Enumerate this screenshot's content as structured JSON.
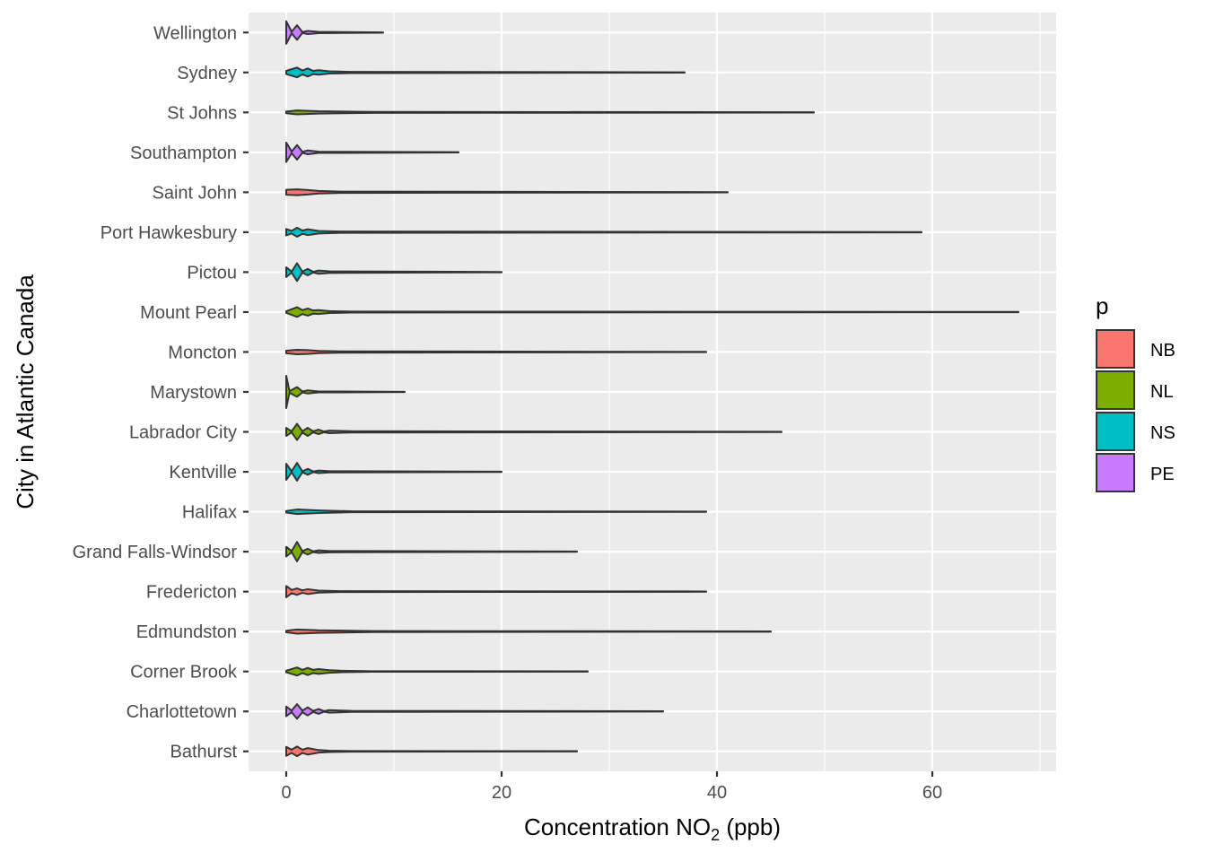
{
  "chart_data": {
    "type": "violin",
    "orientation": "horizontal",
    "title": "",
    "xlabel": {
      "main": "Concentration NO",
      "sub": "2",
      "unit": " (ppb)"
    },
    "ylabel": "City in Atlantic Canada",
    "xlim": [
      -3.5,
      71.5
    ],
    "x_ticks": [
      0,
      20,
      40,
      60
    ],
    "grid": true,
    "legend": {
      "title": "p",
      "position": "right",
      "entries": [
        {
          "name": "NB",
          "color": "#F8766D"
        },
        {
          "name": "NL",
          "color": "#7CAE00"
        },
        {
          "name": "NS",
          "color": "#00BFC4"
        },
        {
          "name": "PE",
          "color": "#C77CFF"
        }
      ]
    },
    "categories": [
      "Bathurst",
      "Charlottetown",
      "Corner Brook",
      "Edmundston",
      "Fredericton",
      "Grand Falls-Windsor",
      "Halifax",
      "Kentville",
      "Labrador City",
      "Marystown",
      "Moncton",
      "Mount Pearl",
      "Pictou",
      "Port Hawkesbury",
      "Saint John",
      "Southampton",
      "St Johns",
      "Sydney",
      "Wellington"
    ],
    "series": [
      {
        "city": "Bathurst",
        "province": "NB",
        "min": 0,
        "max": 27,
        "density": [
          [
            0,
            0.28
          ],
          [
            0.5,
            0.1
          ],
          [
            1,
            0.3
          ],
          [
            1.5,
            0.1
          ],
          [
            2,
            0.2
          ],
          [
            3,
            0.08
          ],
          [
            4,
            0.04
          ],
          [
            6,
            0.02
          ],
          [
            27,
            0.01
          ]
        ]
      },
      {
        "city": "Charlottetown",
        "province": "PE",
        "min": 0,
        "max": 35,
        "density": [
          [
            0,
            0.3
          ],
          [
            0.5,
            0.05
          ],
          [
            1,
            0.45
          ],
          [
            1.5,
            0.05
          ],
          [
            2,
            0.25
          ],
          [
            2.5,
            0.03
          ],
          [
            3,
            0.15
          ],
          [
            3.5,
            0.02
          ],
          [
            4,
            0.08
          ],
          [
            6,
            0.03
          ],
          [
            35,
            0.01
          ]
        ]
      },
      {
        "city": "Corner Brook",
        "province": "NL",
        "min": 0,
        "max": 28,
        "density": [
          [
            0,
            0.05
          ],
          [
            1,
            0.25
          ],
          [
            1.5,
            0.1
          ],
          [
            2,
            0.22
          ],
          [
            2.5,
            0.1
          ],
          [
            3,
            0.15
          ],
          [
            4,
            0.08
          ],
          [
            5,
            0.05
          ],
          [
            8,
            0.02
          ],
          [
            28,
            0.01
          ]
        ]
      },
      {
        "city": "Edmundston",
        "province": "NB",
        "min": 0,
        "max": 45,
        "density": [
          [
            0,
            0.05
          ],
          [
            1,
            0.13
          ],
          [
            3,
            0.08
          ],
          [
            8,
            0.03
          ],
          [
            45,
            0.01
          ]
        ]
      },
      {
        "city": "Fredericton",
        "province": "NB",
        "min": 0,
        "max": 39,
        "density": [
          [
            0,
            0.35
          ],
          [
            0.5,
            0.1
          ],
          [
            1,
            0.2
          ],
          [
            1.5,
            0.08
          ],
          [
            2,
            0.15
          ],
          [
            3,
            0.06
          ],
          [
            5,
            0.03
          ],
          [
            39,
            0.01
          ]
        ]
      },
      {
        "city": "Grand Falls-Windsor",
        "province": "NL",
        "min": 0,
        "max": 27,
        "density": [
          [
            0,
            0.3
          ],
          [
            0.5,
            0.03
          ],
          [
            1,
            0.6
          ],
          [
            1.5,
            0.03
          ],
          [
            2,
            0.18
          ],
          [
            2.5,
            0.02
          ],
          [
            3,
            0.08
          ],
          [
            4,
            0.04
          ],
          [
            27,
            0.01
          ]
        ]
      },
      {
        "city": "Halifax",
        "province": "NS",
        "min": 0,
        "max": 39,
        "density": [
          [
            0,
            0.05
          ],
          [
            1,
            0.14
          ],
          [
            3,
            0.08
          ],
          [
            6,
            0.03
          ],
          [
            39,
            0.01
          ]
        ]
      },
      {
        "city": "Kentville",
        "province": "NS",
        "min": 0,
        "max": 20,
        "density": [
          [
            0,
            0.5
          ],
          [
            0.5,
            0.03
          ],
          [
            1,
            0.55
          ],
          [
            1.5,
            0.03
          ],
          [
            2,
            0.18
          ],
          [
            2.5,
            0.02
          ],
          [
            3,
            0.08
          ],
          [
            4,
            0.04
          ],
          [
            20,
            0.01
          ]
        ]
      },
      {
        "city": "Labrador City",
        "province": "NL",
        "min": 0,
        "max": 46,
        "density": [
          [
            0,
            0.25
          ],
          [
            0.5,
            0.03
          ],
          [
            1,
            0.5
          ],
          [
            1.5,
            0.04
          ],
          [
            2,
            0.25
          ],
          [
            2.5,
            0.03
          ],
          [
            3,
            0.14
          ],
          [
            3.5,
            0.02
          ],
          [
            4,
            0.08
          ],
          [
            6,
            0.04
          ],
          [
            46,
            0.01
          ]
        ]
      },
      {
        "city": "Marystown",
        "province": "NL",
        "min": 0,
        "max": 11,
        "density": [
          [
            0,
            1.0
          ],
          [
            0.3,
            0.05
          ],
          [
            1,
            0.3
          ],
          [
            1.5,
            0.03
          ],
          [
            2,
            0.1
          ],
          [
            3,
            0.03
          ],
          [
            11,
            0.01
          ]
        ]
      },
      {
        "city": "Moncton",
        "province": "NB",
        "min": 0,
        "max": 39,
        "density": [
          [
            0,
            0.08
          ],
          [
            1,
            0.14
          ],
          [
            2,
            0.12
          ],
          [
            3,
            0.07
          ],
          [
            5,
            0.04
          ],
          [
            39,
            0.01
          ]
        ]
      },
      {
        "city": "Mount Pearl",
        "province": "NL",
        "min": 0,
        "max": 68,
        "density": [
          [
            0,
            0.05
          ],
          [
            1,
            0.3
          ],
          [
            1.5,
            0.12
          ],
          [
            2,
            0.22
          ],
          [
            2.5,
            0.1
          ],
          [
            3,
            0.12
          ],
          [
            4,
            0.06
          ],
          [
            6,
            0.03
          ],
          [
            68,
            0.01
          ]
        ]
      },
      {
        "city": "Pictou",
        "province": "NS",
        "min": 0,
        "max": 20,
        "density": [
          [
            0,
            0.3
          ],
          [
            0.5,
            0.03
          ],
          [
            1,
            0.55
          ],
          [
            1.5,
            0.03
          ],
          [
            2,
            0.2
          ],
          [
            2.5,
            0.02
          ],
          [
            3,
            0.1
          ],
          [
            4,
            0.05
          ],
          [
            20,
            0.01
          ]
        ]
      },
      {
        "city": "Port Hawkesbury",
        "province": "NS",
        "min": 0,
        "max": 59,
        "density": [
          [
            0,
            0.2
          ],
          [
            0.5,
            0.08
          ],
          [
            1,
            0.28
          ],
          [
            1.5,
            0.1
          ],
          [
            2,
            0.18
          ],
          [
            3,
            0.08
          ],
          [
            5,
            0.04
          ],
          [
            59,
            0.01
          ]
        ]
      },
      {
        "city": "Saint John",
        "province": "NB",
        "min": 0,
        "max": 41,
        "density": [
          [
            0,
            0.15
          ],
          [
            1,
            0.18
          ],
          [
            2,
            0.14
          ],
          [
            3,
            0.08
          ],
          [
            5,
            0.04
          ],
          [
            41,
            0.01
          ]
        ]
      },
      {
        "city": "Southampton",
        "province": "PE",
        "min": 0,
        "max": 16,
        "density": [
          [
            0,
            0.6
          ],
          [
            0.5,
            0.05
          ],
          [
            1,
            0.45
          ],
          [
            1.5,
            0.03
          ],
          [
            2,
            0.12
          ],
          [
            3,
            0.04
          ],
          [
            16,
            0.01
          ]
        ]
      },
      {
        "city": "St Johns",
        "province": "NL",
        "min": 0,
        "max": 49,
        "density": [
          [
            0,
            0.05
          ],
          [
            1,
            0.12
          ],
          [
            3,
            0.07
          ],
          [
            8,
            0.03
          ],
          [
            49,
            0.01
          ]
        ]
      },
      {
        "city": "Sydney",
        "province": "NS",
        "min": 0,
        "max": 37,
        "density": [
          [
            0,
            0.1
          ],
          [
            1,
            0.3
          ],
          [
            1.5,
            0.12
          ],
          [
            2,
            0.25
          ],
          [
            2.5,
            0.1
          ],
          [
            3,
            0.14
          ],
          [
            4,
            0.07
          ],
          [
            6,
            0.04
          ],
          [
            37,
            0.01
          ]
        ]
      },
      {
        "city": "Wellington",
        "province": "PE",
        "min": 0,
        "max": 9,
        "density": [
          [
            0,
            0.7
          ],
          [
            0.5,
            0.05
          ],
          [
            1,
            0.45
          ],
          [
            1.5,
            0.03
          ],
          [
            2,
            0.1
          ],
          [
            3,
            0.04
          ],
          [
            9,
            0.01
          ]
        ]
      }
    ]
  }
}
